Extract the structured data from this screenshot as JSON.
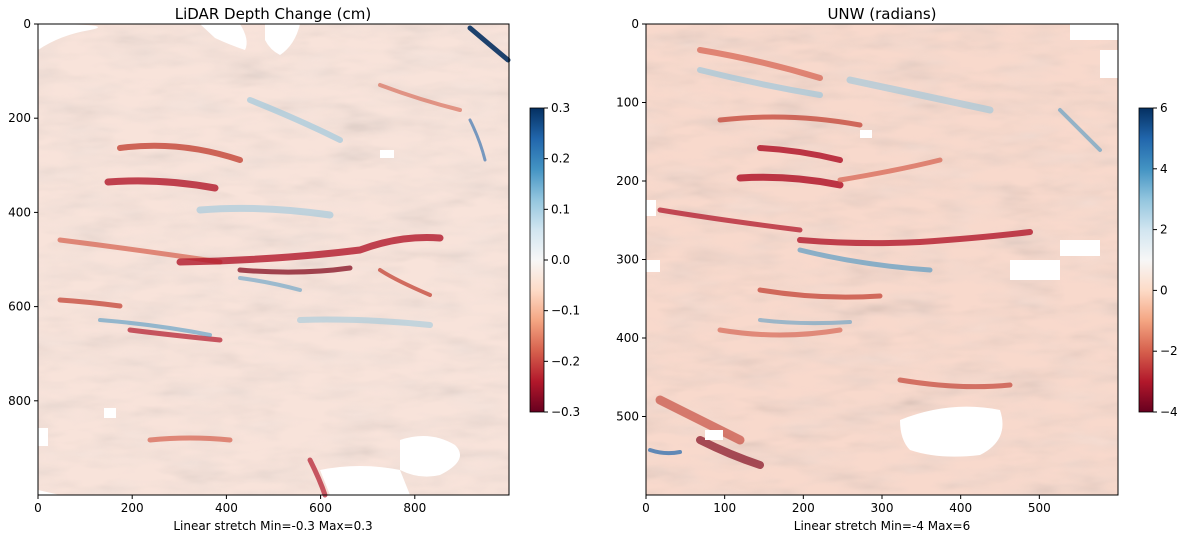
{
  "chart_data": [
    {
      "type": "heatmap",
      "title": "LiDAR Depth Change (cm)",
      "xlabel": "Linear stretch Min=-0.3 Max=0.3",
      "ylabel": "",
      "xlim": [
        0,
        1000
      ],
      "ylim": [
        1000,
        0
      ],
      "xticks": [
        0,
        200,
        400,
        600,
        800
      ],
      "yticks": [
        0,
        200,
        400,
        600,
        800
      ],
      "xtick_labels": [
        "0",
        "200",
        "400",
        "600",
        "800"
      ],
      "ytick_labels": [
        "0",
        "200",
        "400",
        "600",
        "800"
      ],
      "colormap": "RdBu",
      "vmin": -0.3,
      "vmax": 0.3,
      "colorbar_ticks": [
        -0.3,
        -0.2,
        -0.1,
        0.0,
        0.1,
        0.2,
        0.3
      ],
      "colorbar_tick_labels": [
        "−0.3",
        "−0.2",
        "−0.1",
        "0.0",
        "0.1",
        "0.2",
        "0.3"
      ]
    },
    {
      "type": "heatmap",
      "title": "UNW (radians)",
      "xlabel": "Linear stretch Min=-4 Max=6",
      "ylabel": "",
      "xlim": [
        0,
        600
      ],
      "ylim": [
        600,
        0
      ],
      "xticks": [
        0,
        100,
        200,
        300,
        400,
        500
      ],
      "yticks": [
        0,
        100,
        200,
        300,
        400,
        500
      ],
      "xtick_labels": [
        "0",
        "100",
        "200",
        "300",
        "400",
        "500"
      ],
      "ytick_labels": [
        "0",
        "100",
        "200",
        "300",
        "400",
        "500"
      ],
      "colormap": "RdBu",
      "vmin": -4,
      "vmax": 6,
      "colorbar_ticks": [
        -4,
        -2,
        0,
        2,
        4,
        6
      ],
      "colorbar_tick_labels": [
        "−4",
        "−2",
        "0",
        "2",
        "4",
        "6"
      ]
    }
  ],
  "colors": {
    "colormap_stops": [
      "#67001f",
      "#b2182b",
      "#d6604d",
      "#f4a582",
      "#fddbc7",
      "#f7f7f7",
      "#d1e5f0",
      "#92c5de",
      "#4393c3",
      "#2166ac",
      "#053061"
    ],
    "axis": "#000000",
    "background": "#ffffff"
  }
}
